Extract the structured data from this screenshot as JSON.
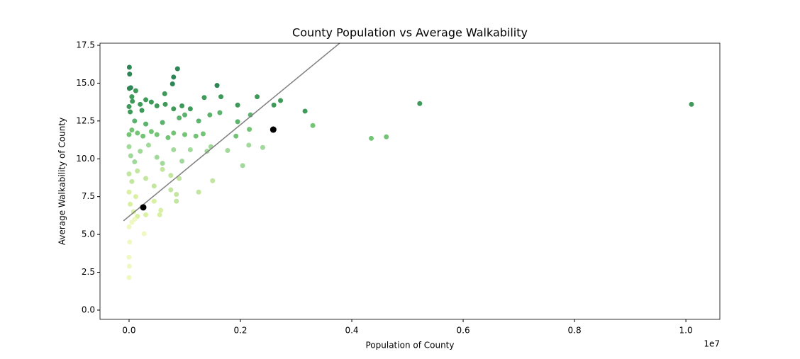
{
  "chart_data": {
    "type": "scatter",
    "title": "County Population vs Average Walkability",
    "x_label": "Population of County",
    "y_label": "Average Walkability of County",
    "x_offset_label": "1e7",
    "xlim": [
      -522000,
      10610000
    ],
    "ylim": [
      -0.61,
      17.64
    ],
    "xticks": [
      {
        "value": 0,
        "label": "0.0"
      },
      {
        "value": 2000000,
        "label": "0.2"
      },
      {
        "value": 4000000,
        "label": "0.4"
      },
      {
        "value": 6000000,
        "label": "0.6"
      },
      {
        "value": 8000000,
        "label": "0.8"
      },
      {
        "value": 10000000,
        "label": "1.0"
      }
    ],
    "yticks": [
      {
        "value": 0,
        "label": "0.0"
      },
      2.5,
      {
        "value": 5,
        "label": "5.0"
      },
      7.5,
      {
        "value": 10,
        "label": "10.0"
      },
      12.5,
      {
        "value": 15,
        "label": "15.0"
      },
      17.5
    ],
    "grid": false,
    "series": [
      {
        "color": "#2e8555",
        "x": [
          5000,
          10000,
          5000,
          30000,
          800000,
          780000,
          870000,
          1580000
        ],
        "y": [
          16.05,
          15.6,
          14.65,
          14.7,
          15.4,
          14.95,
          15.95,
          14.85
        ]
      },
      {
        "color": "#3f9a5a",
        "x": [
          0,
          20000,
          50000,
          60000,
          120000,
          200000,
          300000,
          400000,
          500000,
          640000,
          650000,
          800000,
          950000,
          1100000,
          1350000,
          1650000,
          1950000,
          2300000,
          2600000,
          2720000,
          3160000,
          5220000,
          10100000,
          230000
        ],
        "y": [
          13.45,
          13.1,
          14.1,
          13.8,
          14.5,
          13.6,
          13.9,
          13.75,
          13.5,
          14.3,
          13.6,
          13.3,
          13.5,
          13.3,
          14.05,
          14.1,
          13.55,
          14.1,
          13.55,
          13.85,
          13.15,
          13.65,
          13.6,
          13.2
        ]
      },
      {
        "color": "#5cb36d",
        "x": [
          100000,
          300000,
          600000,
          1000000,
          1250000,
          1450000,
          1630000,
          2180000,
          1950000,
          900000
        ],
        "y": [
          12.5,
          12.3,
          12.4,
          12.9,
          12.5,
          12.9,
          13.05,
          12.9,
          12.45,
          12.7
        ]
      },
      {
        "color": "#74c476",
        "x": [
          0,
          50000,
          150000,
          250000,
          400000,
          500000,
          700000,
          800000,
          1000000,
          1200000,
          1330000,
          1920000,
          2160000,
          3300000,
          4350000,
          4620000
        ],
        "y": [
          11.6,
          11.9,
          11.7,
          11.5,
          11.8,
          11.6,
          11.4,
          11.7,
          11.6,
          11.5,
          11.65,
          11.5,
          11.95,
          12.2,
          11.35,
          11.45
        ]
      },
      {
        "color": "#a1d99b",
        "x": [
          0,
          30000,
          100000,
          200000,
          350000,
          500000,
          600000,
          800000,
          950000,
          1100000,
          1400000,
          1470000,
          1770000,
          2040000,
          2150000,
          2400000
        ],
        "y": [
          10.8,
          10.2,
          9.8,
          10.5,
          10.9,
          10.1,
          9.7,
          10.6,
          9.85,
          10.6,
          10.5,
          10.8,
          10.55,
          9.55,
          10.9,
          10.75
        ]
      },
      {
        "color": "#c2e6a0",
        "x": [
          0,
          50000,
          150000,
          300000,
          450000,
          600000,
          750000,
          900000,
          1500000,
          1250000,
          750000,
          850000,
          850000
        ],
        "y": [
          9.0,
          8.5,
          9.2,
          8.7,
          8.2,
          9.3,
          8.9,
          8.7,
          8.55,
          7.8,
          7.95,
          7.65,
          7.2
        ]
      },
      {
        "color": "#d9f0a3",
        "x": [
          0,
          20000,
          80000,
          150000,
          300000,
          450000,
          550000,
          570000,
          120000
        ],
        "y": [
          7.8,
          7.0,
          6.5,
          6.2,
          6.3,
          7.2,
          6.3,
          6.6,
          7.5
        ]
      },
      {
        "color": "#f0f8c2",
        "x": [
          0,
          10000,
          0,
          5000,
          0,
          50000,
          270000,
          100000
        ],
        "y": [
          5.5,
          4.5,
          3.5,
          2.9,
          2.15,
          5.8,
          5.05,
          6.0
        ]
      },
      {
        "color": "#000000",
        "size": 9,
        "x": [
          255000,
          2590000
        ],
        "y": [
          6.79,
          11.93
        ]
      }
    ],
    "trend_line": {
      "color": "#808080",
      "x": [
        -100000,
        4000000
      ],
      "y": [
        5.9,
        18.3
      ]
    }
  }
}
